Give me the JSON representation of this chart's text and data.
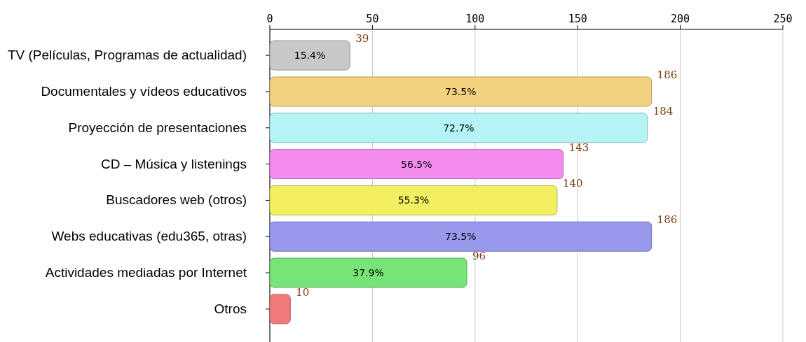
{
  "chart_data": {
    "type": "bar",
    "orientation": "horizontal",
    "categories": [
      "TV (Películas, Programas de actualidad)",
      "Documentales y vídeos educativos",
      "Proyección de presentaciones",
      "CD – Música y listenings",
      "Buscadores web (otros)",
      "Webs educativas (edu365, otras)",
      "Actividades mediadas por Internet",
      "Otros"
    ],
    "values": [
      39,
      186,
      184,
      143,
      140,
      186,
      96,
      10
    ],
    "colors": [
      "#c8c8c8",
      "#f2d27e",
      "#b4f4f6",
      "#f48cf0",
      "#f2f060",
      "#9898ec",
      "#78e478",
      "#f07a7a"
    ],
    "xlim": [
      0,
      250
    ],
    "xticks": [
      0,
      50,
      100,
      150,
      200,
      250
    ],
    "grid": "x",
    "data_labels": true,
    "annotations": [
      {
        "text": "15.4%",
        "x": 19.5,
        "y": "TV (Películas, Programas de actualidad)"
      },
      {
        "text": "73.5%",
        "x": 93,
        "y": "Documentales y vídeos educativos"
      },
      {
        "text": "72.7%",
        "x": 92,
        "y": "Proyección de presentaciones"
      },
      {
        "text": "56.5%",
        "x": 71.5,
        "y": "CD – Música y listenings"
      },
      {
        "text": "55.3%",
        "x": 70,
        "y": "Buscadores web (otros)"
      },
      {
        "text": "73.5%",
        "x": 93,
        "y": "Webs educativas (edu365, otras)"
      },
      {
        "text": "37.9%",
        "x": 48,
        "y": "Actividades mediadas por Internet"
      }
    ]
  }
}
